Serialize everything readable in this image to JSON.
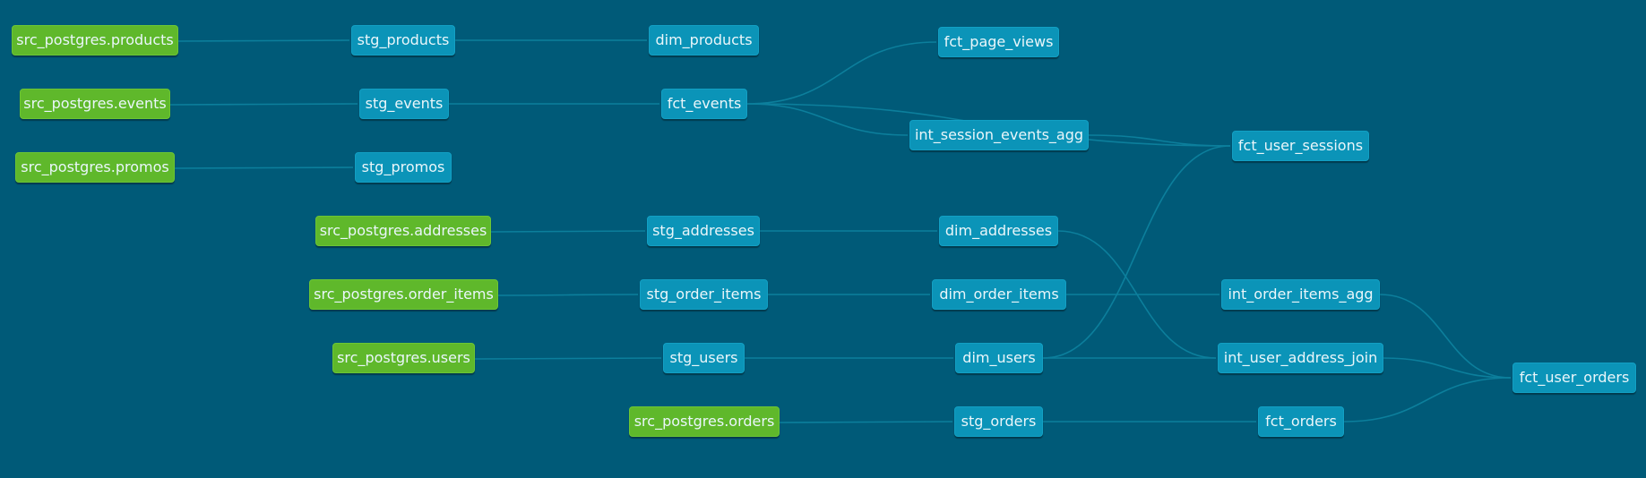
{
  "lineage_graph": {
    "colors": {
      "background": "#005a78",
      "source_node": "#5fb82b",
      "model_node": "#0b94b8",
      "edge": "#0c7f9c"
    },
    "nodes": {
      "src_products": "src_postgres.products",
      "src_events": "src_postgres.events",
      "src_promos": "src_postgres.promos",
      "src_addresses": "src_postgres.addresses",
      "src_order_items": "src_postgres.order_items",
      "src_users": "src_postgres.users",
      "src_orders": "src_postgres.orders",
      "stg_products": "stg_products",
      "stg_events": "stg_events",
      "stg_promos": "stg_promos",
      "stg_addresses": "stg_addresses",
      "stg_order_items": "stg_order_items",
      "stg_users": "stg_users",
      "stg_orders": "stg_orders",
      "dim_products": "dim_products",
      "fct_events": "fct_events",
      "dim_addresses": "dim_addresses",
      "dim_order_items": "dim_order_items",
      "dim_users": "dim_users",
      "fct_page_views": "fct_page_views",
      "int_session_events_agg": "int_session_events_agg",
      "fct_user_sessions": "fct_user_sessions",
      "int_order_items_agg": "int_order_items_agg",
      "int_user_address_join": "int_user_address_join",
      "fct_orders": "fct_orders",
      "fct_user_orders": "fct_user_orders"
    }
  }
}
